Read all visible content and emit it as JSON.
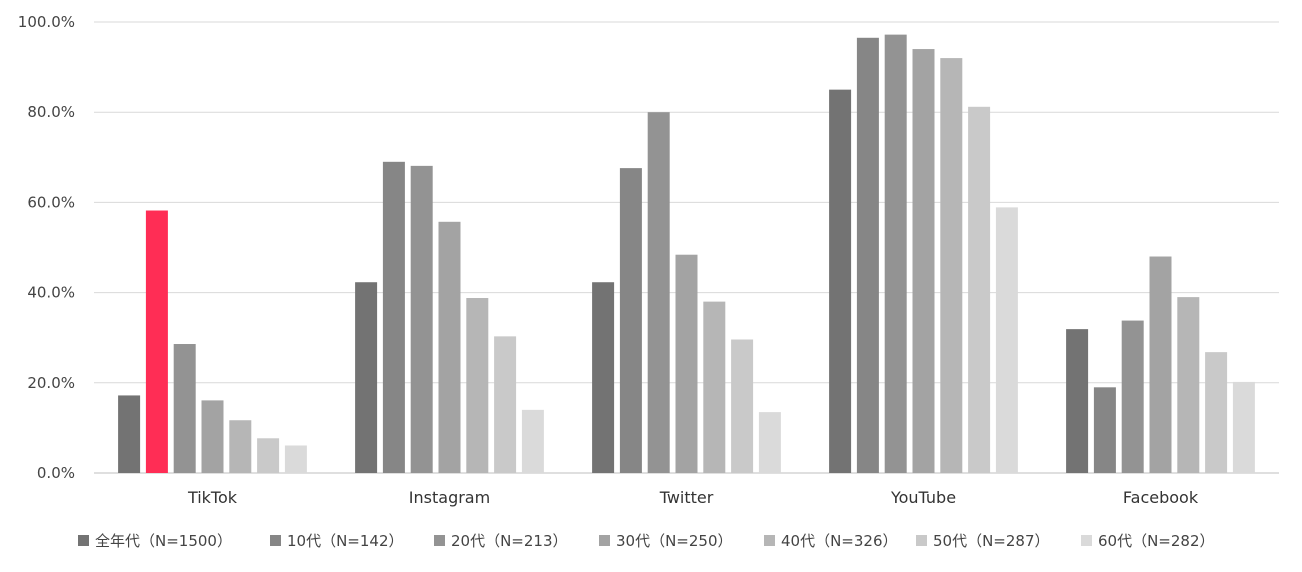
{
  "chart_data": {
    "type": "bar",
    "categories": [
      "TikTok",
      "Instagram",
      "Twitter",
      "YouTube",
      "Facebook"
    ],
    "ylim": [
      0,
      100
    ],
    "yticks": [
      "0.0%",
      "20.0%",
      "40.0%",
      "60.0%",
      "80.0%",
      "100.0%"
    ],
    "grid": true,
    "legend_position": "bottom",
    "series": [
      {
        "name": "全年代（N=1500）",
        "color": "#737373",
        "values": [
          17.2,
          42.3,
          42.3,
          85.0,
          31.9
        ]
      },
      {
        "name": "10代（N=142）",
        "color": "#868686",
        "values": [
          58.2,
          69.0,
          67.6,
          96.5,
          19.0
        ]
      },
      {
        "name": "20代（N=213）",
        "color": "#939393",
        "values": [
          28.6,
          68.1,
          80.0,
          97.2,
          33.8
        ]
      },
      {
        "name": "30代（N=250）",
        "color": "#a3a3a3",
        "values": [
          16.1,
          55.7,
          48.4,
          94.0,
          48.0
        ]
      },
      {
        "name": "40代（N=326）",
        "color": "#b6b6b6",
        "values": [
          11.7,
          38.8,
          38.0,
          92.0,
          39.0
        ]
      },
      {
        "name": "50代（N=287）",
        "color": "#c9c9c9",
        "values": [
          7.7,
          30.3,
          29.6,
          81.2,
          26.8
        ]
      },
      {
        "name": "60代（N=282）",
        "color": "#dadada",
        "values": [
          6.1,
          14.0,
          13.5,
          58.9,
          20.2
        ]
      }
    ],
    "highlight": {
      "series_index": 1,
      "category_index": 0,
      "color": "#ff2d55"
    }
  }
}
